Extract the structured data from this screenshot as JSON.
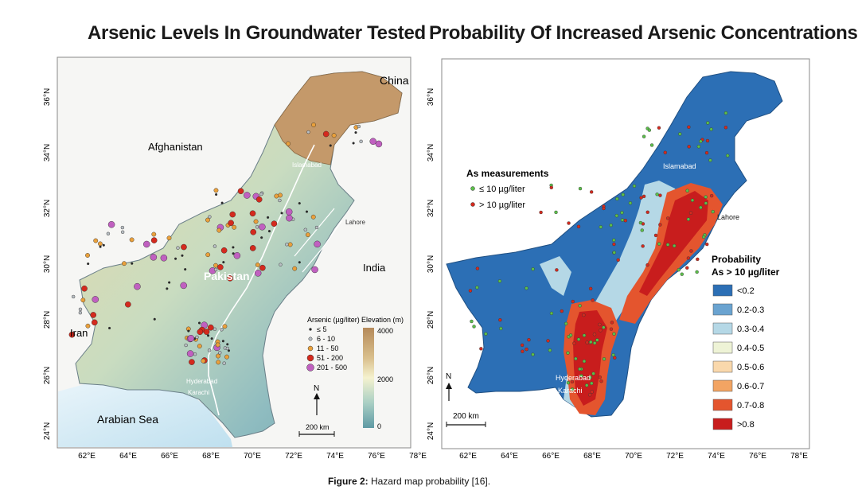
{
  "left_map": {
    "title": "Arsenic Levels In Groundwater Tested",
    "labels": {
      "china": "China",
      "afghanistan": "Afghanistan",
      "india": "India",
      "iran": "Iran",
      "arabian_sea": "Arabian Sea",
      "pakistan": "Pakistan",
      "islamabad": "Islamabad",
      "lahore": "Lahore",
      "hyderabad": "Hyderabad",
      "karachi": "Karachi"
    },
    "lat_ticks": [
      "36°N",
      "34°N",
      "32°N",
      "30°N",
      "28°N",
      "26°N",
      "24°N"
    ],
    "lon_ticks": [
      "62°E",
      "64°E",
      "66°E",
      "68°E",
      "70°E",
      "72°E",
      "74°E",
      "76°E",
      "78°E"
    ],
    "arsenic_legend": {
      "title": "Arsenic (µg/liter)",
      "items": [
        "≤ 5",
        "6 - 10",
        "11 - 50",
        "51 - 200",
        "201 - 500"
      ],
      "colors": [
        "#2a2a2a",
        "#b9bfc4",
        "#e9a03c",
        "#d42a1e",
        "#c060c0"
      ]
    },
    "elevation_legend": {
      "title": "Elevation (m)",
      "ticks": [
        "4000",
        "2000",
        "0"
      ],
      "colors": [
        "#b58a5a",
        "#e9d9a8",
        "#f5f2cf",
        "#a9cfc4",
        "#5f9aa4"
      ]
    },
    "north": "N",
    "scale": "200 km"
  },
  "right_map": {
    "title": "Probability Of Increased Arsenic Concentrations",
    "measurement_legend": {
      "title": "As measurements",
      "items": [
        "≤ 10 µg/liter",
        "> 10 µg/liter"
      ],
      "colors": [
        "#5cbf4a",
        "#d42a1e"
      ]
    },
    "probability_legend": {
      "title_line1": "Probability",
      "title_line2": "As > 10 µg/liter",
      "items": [
        "<0.2",
        "0.2-0.3",
        "0.3-0.4",
        "0.4-0.5",
        "0.5-0.6",
        "0.6-0.7",
        "0.7-0.8",
        ">0.8"
      ],
      "colors": [
        "#2c6fb5",
        "#6aa3d0",
        "#b5d8e6",
        "#eef3d6",
        "#f9d8ac",
        "#f2a463",
        "#e4552e",
        "#c81d1d"
      ]
    },
    "labels": {
      "islamabad": "Islamabad",
      "lahore": "Lahore",
      "hyderabad": "Hyderabad",
      "karachi": "Karachi"
    },
    "lat_ticks": [
      "36°N",
      "34°N",
      "32°N",
      "30°N",
      "28°N",
      "26°N",
      "24°N"
    ],
    "lon_ticks": [
      "62°E",
      "64°E",
      "66°E",
      "68°E",
      "70°E",
      "72°E",
      "74°E",
      "76°E",
      "78°E"
    ],
    "north": "N",
    "scale": "200 km"
  },
  "caption": {
    "label": "Figure 2:",
    "text": " Hazard map probability [16]."
  }
}
